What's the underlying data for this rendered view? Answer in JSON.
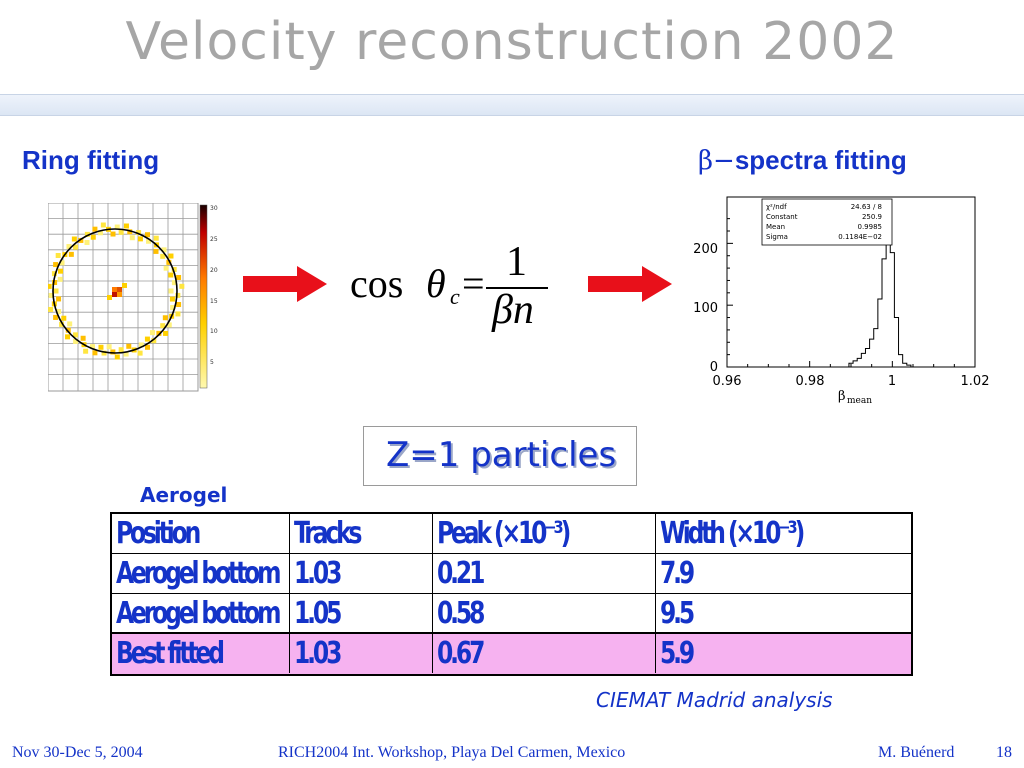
{
  "slide": {
    "title": "Velocity reconstruction 2002",
    "left_header": "Ring fitting",
    "right_header_prefix": "β−",
    "right_header": "spectra fitting",
    "formula": {
      "lhs_func": "cos",
      "lhs_symbol": "θ",
      "lhs_sub": "c",
      "equals": "=",
      "numerator": "1",
      "denominator": "βn"
    },
    "particles_box": "Z=1 particles",
    "aerogel_label": "Aerogel",
    "analysis_credit": "CIEMAT Madrid analysis"
  },
  "ring_plot": {
    "scale_ticks": [
      "30",
      "25",
      "20",
      "15",
      "10",
      "5"
    ]
  },
  "spectrum_plot": {
    "stats": [
      {
        "label": "χ²/ndf",
        "value": "24.63  /   8"
      },
      {
        "label": "Constant",
        "value": "250.9"
      },
      {
        "label": "Mean",
        "value": "0.9985"
      },
      {
        "label": "Sigma",
        "value": "0.1184E−02"
      }
    ],
    "y_ticks": [
      "200",
      "100",
      "0"
    ],
    "x_ticks": [
      "0.96",
      "0.98",
      "1",
      "1.02"
    ],
    "x_label": "β",
    "x_label_sub": "mean"
  },
  "table": {
    "headers": [
      "Position",
      "Tracks",
      "Peak (×10⁻³)",
      "Width (×10⁻³)"
    ],
    "rows": [
      {
        "cells": [
          "Aerogel bottom",
          "1.03",
          "0.21",
          "7.9"
        ],
        "highlight": false
      },
      {
        "cells": [
          "Aerogel bottom",
          "1.05",
          "0.58",
          "9.5"
        ],
        "highlight": false
      },
      {
        "cells": [
          "Best fitted",
          "1.03",
          "0.67",
          "5.9"
        ],
        "highlight": true
      }
    ]
  },
  "footer": {
    "date": "Nov 30-Dec 5, 2004",
    "event": "RICH2004 Int. Workshop, Playa Del Carmen, Mexico",
    "author": "M. Buénerd",
    "page": "18"
  },
  "colors": {
    "accent": "#1433c8",
    "title_gray": "#a6a6a6",
    "arrow_red": "#e8101a",
    "highlight_pink": "#f6b2f0",
    "fit_red": "#e00000"
  },
  "chart_data": {
    "type": "bar",
    "title": "",
    "xlabel": "β mean",
    "ylabel": "",
    "xlim": [
      0.96,
      1.02
    ],
    "ylim": [
      0,
      275
    ],
    "fit": {
      "type": "gaussian",
      "constant": 250.9,
      "mean": 0.9985,
      "sigma": 0.001184
    },
    "x": [
      0.99,
      0.991,
      0.992,
      0.993,
      0.994,
      0.995,
      0.996,
      0.997,
      0.998,
      0.999,
      1.0,
      1.001,
      1.002,
      1.003,
      1.004
    ],
    "values": [
      6,
      10,
      14,
      22,
      30,
      45,
      62,
      110,
      175,
      255,
      185,
      80,
      20,
      6,
      3
    ]
  }
}
